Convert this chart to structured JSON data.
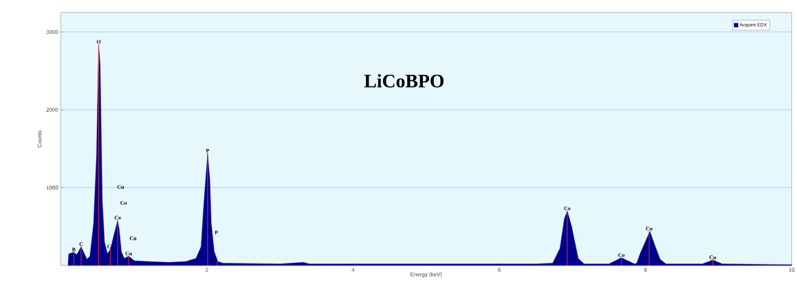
{
  "chart_data": {
    "type": "area",
    "title": "LiCoBPO",
    "xlabel": "Energy (keV)",
    "ylabel": "Counts",
    "xlim": [
      0,
      10
    ],
    "xticks": [
      2,
      4,
      6,
      8,
      10
    ],
    "ylim": [
      0,
      3250
    ],
    "yticks": [
      1000,
      2000,
      3000
    ],
    "grid": "y",
    "legend": "top right",
    "series": [
      {
        "name": "Acquire EDX",
        "color": "#00008b",
        "x": [
          0.1,
          0.11,
          0.18,
          0.22,
          0.28,
          0.36,
          0.4,
          0.45,
          0.49,
          0.52,
          0.54,
          0.555,
          0.57,
          0.6,
          0.64,
          0.68,
          0.72,
          0.78,
          0.8,
          0.83,
          0.87,
          0.93,
          1.01,
          1.2,
          1.48,
          1.71,
          1.85,
          1.92,
          1.96,
          2.01,
          2.04,
          2.06,
          2.1,
          2.15,
          2.22,
          3.0,
          3.32,
          3.4,
          4.0,
          5.0,
          6.0,
          6.5,
          6.73,
          6.83,
          6.89,
          6.93,
          6.99,
          7.08,
          7.16,
          7.5,
          7.67,
          7.85,
          7.88,
          7.93,
          8.06,
          8.12,
          8.2,
          8.28,
          8.78,
          8.92,
          9.05,
          10.0
        ],
        "values": [
          0,
          150,
          170,
          140,
          240,
          80,
          120,
          540,
          1410,
          2840,
          2580,
          1700,
          820,
          300,
          150,
          210,
          360,
          580,
          470,
          180,
          90,
          120,
          60,
          50,
          40,
          50,
          90,
          240,
          820,
          1440,
          1110,
          540,
          180,
          50,
          30,
          20,
          40,
          20,
          20,
          20,
          20,
          20,
          30,
          220,
          600,
          700,
          500,
          90,
          20,
          20,
          100,
          20,
          30,
          160,
          440,
          280,
          80,
          20,
          20,
          70,
          20,
          10
        ]
      },
      {
        "type": "bar",
        "color": "#e03030",
        "x": [
          0.18,
          0.28,
          0.52,
          0.68,
          0.78,
          0.93,
          2.01,
          2.14,
          6.93,
          7.67,
          8.05,
          8.92
        ],
        "values": [
          170,
          240,
          2840,
          210,
          580,
          120,
          1440,
          60,
          700,
          100,
          440,
          70
        ],
        "value_labels": [
          "B",
          "C",
          "O",
          "Co",
          "Co",
          "Cu",
          "P",
          null,
          "Co",
          "Co",
          "Cu",
          "Cu"
        ]
      }
    ],
    "annotations": [
      "Cu",
      "Co",
      "Cu",
      "P"
    ]
  }
}
